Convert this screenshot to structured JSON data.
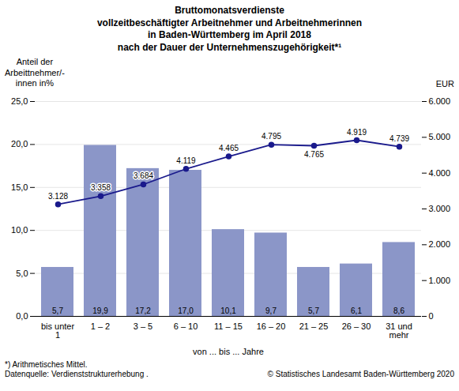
{
  "chart_data": {
    "type": "bar",
    "title": "Bruttomonatsverdienste\nvollzeitbeschäftigter Arbeitnehmer und Arbeitnehmerinnen\nin Baden-Württemberg im April 2018\nnach der Dauer der Unternehmenszugehörigkeit*¹",
    "categories": [
      "bis unter\n1",
      "1 – 2",
      "3 – 5",
      "6 – 10",
      "11 – 15",
      "16 – 20",
      "21 – 25",
      "26 – 30",
      "31 und\nmehr"
    ],
    "series": [
      {
        "type": "bar",
        "color": "#8B96C8",
        "values": [
          5.7,
          19.9,
          17.2,
          17.0,
          10.1,
          9.7,
          5.7,
          6.1,
          8.6
        ],
        "data_labels": true,
        "value_labels": [
          "5,7",
          "19,9",
          "17,2",
          "17,0",
          "10,1",
          "9,7",
          "5,7",
          "6,1",
          "8,6"
        ]
      },
      {
        "type": "line",
        "axis": "y2",
        "color": "#1a1a8c",
        "marker": "circle",
        "line_style": "solid",
        "values": [
          3128,
          3358,
          3684,
          4119,
          4465,
          4795,
          4765,
          4919,
          4739
        ],
        "data_labels": true,
        "value_labels": [
          "3.128",
          "3.358",
          "3.684",
          "4.119",
          "4.465",
          "4.795",
          "4.765",
          "4.919",
          "4.739"
        ]
      }
    ],
    "xlabel": "von ... bis ... Jahre",
    "ylabel": "Anteil der\nArbeittnehmer/-\ninnen in%",
    "y2label": "EUR",
    "ylim": [
      0,
      25
    ],
    "yticks": [
      {
        "value": 0,
        "label": "0,0"
      },
      {
        "value": 5,
        "label": "5,0"
      },
      {
        "value": 10,
        "label": "10,0"
      },
      {
        "value": 15,
        "label": "15,0"
      },
      {
        "value": 20,
        "label": "20,0"
      },
      {
        "value": 25,
        "label": "25,0"
      }
    ],
    "y2lim": [
      0,
      6000
    ],
    "y2ticks": [
      0,
      {
        "value": 1000,
        "label": "1.000"
      },
      {
        "value": 2000,
        "label": "2.000"
      },
      {
        "value": 3000,
        "label": "3.000"
      },
      {
        "value": 4000,
        "label": "4.000"
      },
      {
        "value": 5000,
        "label": "5.000"
      },
      {
        "value": 6000,
        "label": "6.000"
      }
    ],
    "grid": true,
    "annotations": [
      "*) Arithmetisches Mittel.",
      "Datenquelle: Verdienststrukturerhebung .",
      "© Statistisches Landesamt Baden-Württemberg 2020"
    ]
  }
}
